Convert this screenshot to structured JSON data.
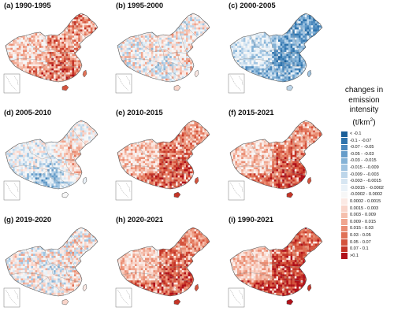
{
  "panels": [
    {
      "label": "(a) 1990-1995",
      "tone": "mixed-red"
    },
    {
      "label": "(b) 1995-2000",
      "tone": "mixed"
    },
    {
      "label": "(c) 2000-2005",
      "tone": "blue"
    },
    {
      "label": "(d) 2005-2010",
      "tone": "blue-east-red"
    },
    {
      "label": "(e) 2010-2015",
      "tone": "red"
    },
    {
      "label": "(f) 2015-2021",
      "tone": "red"
    },
    {
      "label": "(g) 2019-2020",
      "tone": "mixed"
    },
    {
      "label": "(h) 2020-2021",
      "tone": "red"
    },
    {
      "label": "(i) 1990-2021",
      "tone": "red-strong"
    }
  ],
  "legend": {
    "title_line1": "changes in",
    "title_line2": "emission",
    "title_line3": "intensity",
    "title_unit": "(t/km",
    "title_sup": "2",
    "title_close": ")",
    "items": [
      {
        "label": "< -0.1",
        "color": "#1b5f99"
      },
      {
        "label": "-0.1 - -0.07",
        "color": "#2f74ad"
      },
      {
        "label": "-0.07 - -0.05",
        "color": "#4a88bd"
      },
      {
        "label": "-0.05 - -0.03",
        "color": "#659cc9"
      },
      {
        "label": "-0.03 - -0.015",
        "color": "#84b2d6"
      },
      {
        "label": "-0.015 - -0.009",
        "color": "#a0c4e1"
      },
      {
        "label": "-0.009 - -0.003",
        "color": "#bdd6ea"
      },
      {
        "label": "-0.003 - -0.0015",
        "color": "#d7e6f2"
      },
      {
        "label": "-0.0015 - -0.0002",
        "color": "#eaf2f8"
      },
      {
        "label": "-0.0002 - 0.0002",
        "color": "#f7f7f7"
      },
      {
        "label": "0.0002 - 0.0015",
        "color": "#fbe9e4"
      },
      {
        "label": "0.0015 - 0.003",
        "color": "#f9d5ca"
      },
      {
        "label": "0.003 - 0.009",
        "color": "#f5bfad"
      },
      {
        "label": "0.009 - 0.015",
        "color": "#f0a68f"
      },
      {
        "label": "0.015 - 0.03",
        "color": "#ea8c72"
      },
      {
        "label": "0.03 - 0.05",
        "color": "#e07156"
      },
      {
        "label": "0.05 - 0.07",
        "color": "#d4533d"
      },
      {
        "label": "0.07 - 0.1",
        "color": "#c43427"
      },
      {
        "label": ">0.1",
        "color": "#b0111a"
      }
    ]
  }
}
